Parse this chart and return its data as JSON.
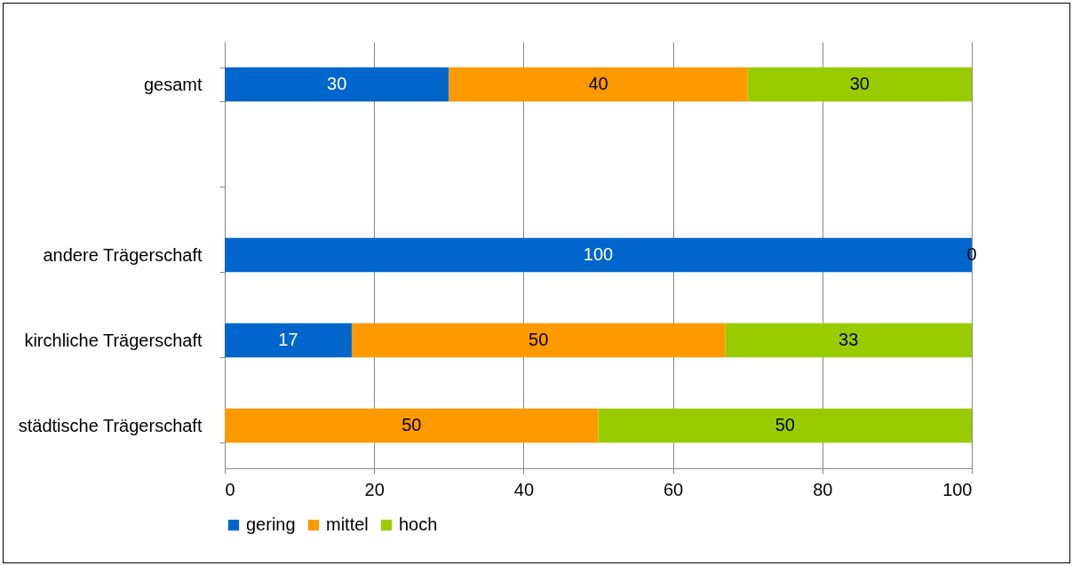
{
  "chart_data": {
    "type": "bar",
    "orientation": "horizontal",
    "stacked": true,
    "categories": [
      "gesamt",
      null,
      "andere Trägerschaft",
      "kirchliche Trägerschaft",
      "städtische Trägerschaft"
    ],
    "series": [
      {
        "name": "gering",
        "color": "#0066cc",
        "values": [
          30,
          null,
          100,
          17,
          0
        ],
        "value_labels": [
          "30",
          null,
          "100",
          "17",
          null
        ]
      },
      {
        "name": "mittel",
        "color": "#ff9900",
        "values": [
          40,
          null,
          0,
          50,
          50
        ],
        "value_labels": [
          "40",
          null,
          "0",
          "50",
          "50"
        ]
      },
      {
        "name": "hoch",
        "color": "#99cc00",
        "values": [
          30,
          null,
          0,
          33,
          50
        ],
        "value_labels": [
          "30",
          null,
          null,
          "33",
          "50"
        ]
      }
    ],
    "xlim": [
      0,
      100
    ],
    "xticks": [
      0,
      20,
      40,
      60,
      80,
      100
    ],
    "grid": "x",
    "legend": "bottom"
  }
}
